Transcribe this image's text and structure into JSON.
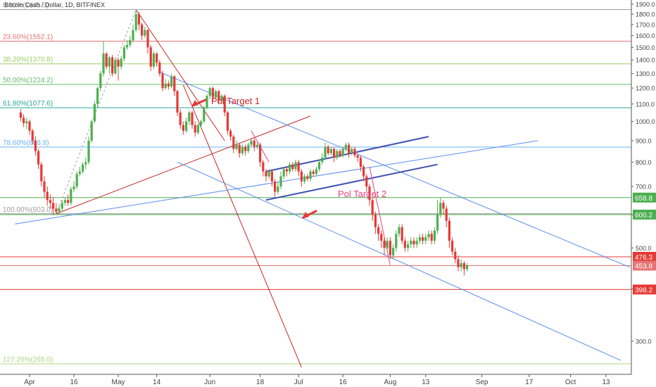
{
  "chart_data": {
    "type": "candlestick",
    "title": "Bitcoin Cash / Dollar, 1D, BITFINEX",
    "x_axis": {
      "ticks": [
        {
          "label": "Apr",
          "day": 0
        },
        {
          "label": "16",
          "day": 15
        },
        {
          "label": "May",
          "day": 30
        },
        {
          "label": "14",
          "day": 43
        },
        {
          "label": "Jun",
          "day": 61
        },
        {
          "label": "18",
          "day": 78
        },
        {
          "label": "Jul",
          "day": 91
        },
        {
          "label": "16",
          "day": 106
        },
        {
          "label": "Aug",
          "day": 122
        },
        {
          "label": "13",
          "day": 134
        },
        {
          "label": "Sep",
          "day": 153
        },
        {
          "label": "17",
          "day": 169
        },
        {
          "label": "Oct",
          "day": 183
        },
        {
          "label": "13",
          "day": 195
        }
      ]
    },
    "y_axis": {
      "scale": "log",
      "range": [
        260,
        1900
      ],
      "ticks": [
        "300.0",
        "400.0",
        "500.0",
        "600.0",
        "700.0",
        "800.0",
        "900.0",
        "1000.0",
        "1100.0",
        "1200.0",
        "1300.0",
        "1400.0",
        "1500.0",
        "1600.0",
        "1700.0",
        "1800.0",
        "1900.0"
      ]
    },
    "fib_levels": [
      {
        "label": "0.00%(1845.3)",
        "value": 1845.3,
        "color": "#9e9e9e"
      },
      {
        "label": "23.60%(1552.1)",
        "value": 1552.1,
        "color": "#e57373"
      },
      {
        "label": "38.20%(1370.8)",
        "value": 1370.8,
        "color": "#9ccc65"
      },
      {
        "label": "50.00%(1224.2)",
        "value": 1224.2,
        "color": "#66bb6a"
      },
      {
        "label": "61.80%(1077.6)",
        "value": 1077.6,
        "color": "#26a69a"
      },
      {
        "label": "78.60%(868.8)",
        "value": 868.8,
        "color": "#64b5f6"
      },
      {
        "label": "100.00%(603.0)",
        "value": 603.0,
        "color": "#9e9e9e"
      },
      {
        "label": "127.20%(265.0)",
        "value": 265.0,
        "color": "#aed581"
      }
    ],
    "horizontal_levels": [
      {
        "label": "658.8",
        "value": 658.8,
        "color": "#4caf50"
      },
      {
        "label": "600.2",
        "value": 600.2,
        "color": "#4caf50"
      },
      {
        "label": "476.3",
        "value": 476.3,
        "color": "#e53935"
      },
      {
        "label": "453.8",
        "value": 453.8,
        "color": "#e57373"
      },
      {
        "label": "398.2",
        "value": 398.2,
        "color": "#e53935"
      }
    ],
    "annotations": [
      {
        "text": "Pol Target 1",
        "color": "#c62828"
      },
      {
        "text": "Pol Target 2",
        "color": "#ec407a"
      }
    ],
    "candles": [
      [
        -3,
        1050,
        1020,
        1070,
        1000
      ],
      [
        -2,
        1020,
        990,
        1040,
        970
      ],
      [
        -1,
        990,
        1000,
        1020,
        960
      ],
      [
        0,
        1000,
        950,
        1010,
        930
      ],
      [
        1,
        950,
        900,
        960,
        880
      ],
      [
        2,
        900,
        850,
        920,
        830
      ],
      [
        3,
        850,
        790,
        860,
        770
      ],
      [
        4,
        790,
        720,
        800,
        700
      ],
      [
        5,
        720,
        680,
        740,
        660
      ],
      [
        6,
        680,
        650,
        700,
        630
      ],
      [
        7,
        650,
        640,
        670,
        620
      ],
      [
        8,
        640,
        620,
        660,
        600
      ],
      [
        9,
        620,
        610,
        640,
        603
      ],
      [
        10,
        610,
        620,
        630,
        600
      ],
      [
        11,
        620,
        640,
        650,
        610
      ],
      [
        12,
        640,
        650,
        660,
        630
      ],
      [
        13,
        650,
        640,
        670,
        630
      ],
      [
        14,
        640,
        690,
        700,
        630
      ],
      [
        15,
        690,
        700,
        720,
        680
      ],
      [
        16,
        700,
        750,
        760,
        690
      ],
      [
        17,
        750,
        760,
        780,
        740
      ],
      [
        18,
        760,
        790,
        800,
        750
      ],
      [
        19,
        790,
        800,
        820,
        770
      ],
      [
        20,
        800,
        900,
        920,
        790
      ],
      [
        21,
        900,
        1000,
        1010,
        890
      ],
      [
        22,
        1000,
        1100,
        1120,
        990
      ],
      [
        23,
        1100,
        1200,
        1210,
        1080
      ],
      [
        24,
        1200,
        1300,
        1320,
        1180
      ],
      [
        25,
        1300,
        1450,
        1550,
        1280
      ],
      [
        26,
        1450,
        1350,
        1460,
        1330
      ],
      [
        27,
        1350,
        1420,
        1430,
        1300
      ],
      [
        28,
        1420,
        1300,
        1440,
        1280
      ],
      [
        29,
        1300,
        1400,
        1420,
        1290
      ],
      [
        30,
        1400,
        1350,
        1420,
        1250
      ],
      [
        31,
        1350,
        1410,
        1430,
        1330
      ],
      [
        32,
        1410,
        1500,
        1520,
        1390
      ],
      [
        33,
        1500,
        1520,
        1560,
        1480
      ],
      [
        34,
        1520,
        1560,
        1600,
        1500
      ],
      [
        35,
        1560,
        1650,
        1700,
        1540
      ],
      [
        36,
        1650,
        1800,
        1845,
        1630
      ],
      [
        37,
        1800,
        1700,
        1820,
        1650
      ],
      [
        38,
        1700,
        1600,
        1720,
        1560
      ],
      [
        39,
        1600,
        1650,
        1680,
        1580
      ],
      [
        40,
        1650,
        1500,
        1660,
        1450
      ],
      [
        41,
        1500,
        1350,
        1520,
        1320
      ],
      [
        42,
        1350,
        1450,
        1470,
        1330
      ],
      [
        43,
        1450,
        1380,
        1460,
        1350
      ],
      [
        44,
        1380,
        1300,
        1400,
        1280
      ],
      [
        45,
        1300,
        1200,
        1320,
        1180
      ],
      [
        46,
        1200,
        1230,
        1260,
        1190
      ],
      [
        47,
        1230,
        1210,
        1250,
        1190
      ],
      [
        48,
        1210,
        1280,
        1300,
        1200
      ],
      [
        49,
        1280,
        1180,
        1290,
        1150
      ],
      [
        50,
        1180,
        1050,
        1190,
        1030
      ],
      [
        51,
        1050,
        980,
        1070,
        960
      ],
      [
        52,
        980,
        950,
        1000,
        930
      ],
      [
        53,
        950,
        1000,
        1020,
        940
      ],
      [
        54,
        1000,
        1050,
        1060,
        980
      ],
      [
        55,
        1050,
        980,
        1060,
        960
      ],
      [
        56,
        980,
        940,
        1000,
        920
      ],
      [
        57,
        940,
        980,
        990,
        930
      ],
      [
        58,
        980,
        1000,
        1010,
        960
      ],
      [
        59,
        1000,
        1080,
        1090,
        990
      ],
      [
        60,
        1080,
        1150,
        1160,
        1070
      ],
      [
        61,
        1150,
        1200,
        1210,
        1130
      ],
      [
        62,
        1200,
        1140,
        1210,
        1120
      ],
      [
        63,
        1140,
        1180,
        1190,
        1130
      ],
      [
        64,
        1180,
        1120,
        1190,
        1100
      ],
      [
        65,
        1120,
        1150,
        1160,
        1100
      ],
      [
        66,
        1150,
        1050,
        1160,
        1030
      ],
      [
        67,
        1050,
        950,
        1060,
        930
      ],
      [
        68,
        950,
        920,
        960,
        900
      ],
      [
        69,
        920,
        860,
        930,
        840
      ],
      [
        70,
        860,
        880,
        900,
        850
      ],
      [
        71,
        880,
        840,
        890,
        820
      ],
      [
        72,
        840,
        870,
        880,
        830
      ],
      [
        73,
        870,
        850,
        880,
        830
      ],
      [
        74,
        850,
        880,
        890,
        840
      ],
      [
        75,
        880,
        900,
        910,
        870
      ],
      [
        76,
        900,
        870,
        910,
        850
      ],
      [
        77,
        870,
        880,
        890,
        860
      ],
      [
        78,
        880,
        800,
        890,
        780
      ],
      [
        79,
        800,
        760,
        810,
        740
      ],
      [
        80,
        760,
        740,
        770,
        720
      ],
      [
        81,
        740,
        760,
        770,
        730
      ],
      [
        82,
        760,
        720,
        770,
        700
      ],
      [
        83,
        720,
        680,
        730,
        660
      ],
      [
        84,
        680,
        700,
        720,
        670
      ],
      [
        85,
        700,
        740,
        760,
        690
      ],
      [
        86,
        740,
        770,
        780,
        730
      ],
      [
        87,
        770,
        760,
        780,
        740
      ],
      [
        88,
        760,
        790,
        800,
        750
      ],
      [
        89,
        790,
        770,
        800,
        760
      ],
      [
        90,
        770,
        800,
        810,
        760
      ],
      [
        91,
        800,
        760,
        810,
        740
      ],
      [
        92,
        760,
        720,
        770,
        700
      ],
      [
        93,
        720,
        740,
        750,
        710
      ],
      [
        94,
        740,
        730,
        750,
        720
      ],
      [
        95,
        730,
        760,
        770,
        720
      ],
      [
        96,
        760,
        750,
        770,
        740
      ],
      [
        97,
        750,
        770,
        780,
        740
      ],
      [
        98,
        770,
        800,
        810,
        760
      ],
      [
        99,
        800,
        820,
        840,
        790
      ],
      [
        100,
        820,
        870,
        890,
        810
      ],
      [
        101,
        870,
        840,
        880,
        830
      ],
      [
        102,
        840,
        860,
        870,
        830
      ],
      [
        103,
        860,
        820,
        870,
        800
      ],
      [
        104,
        820,
        850,
        860,
        810
      ],
      [
        105,
        850,
        830,
        860,
        820
      ],
      [
        106,
        830,
        860,
        870,
        820
      ],
      [
        107,
        860,
        880,
        890,
        850
      ],
      [
        108,
        880,
        840,
        890,
        820
      ],
      [
        109,
        840,
        860,
        870,
        830
      ],
      [
        110,
        860,
        830,
        870,
        820
      ],
      [
        111,
        830,
        820,
        840,
        800
      ],
      [
        112,
        820,
        780,
        830,
        760
      ],
      [
        113,
        780,
        740,
        790,
        720
      ],
      [
        114,
        740,
        700,
        750,
        680
      ],
      [
        115,
        700,
        650,
        710,
        630
      ],
      [
        116,
        650,
        600,
        660,
        580
      ],
      [
        117,
        600,
        560,
        610,
        540
      ],
      [
        118,
        560,
        540,
        570,
        520
      ],
      [
        119,
        540,
        520,
        550,
        500
      ],
      [
        120,
        520,
        500,
        530,
        480
      ],
      [
        121,
        500,
        520,
        530,
        490
      ],
      [
        122,
        520,
        480,
        530,
        470
      ],
      [
        123,
        480,
        500,
        510,
        470
      ],
      [
        124,
        500,
        540,
        550,
        490
      ],
      [
        125,
        540,
        560,
        570,
        530
      ],
      [
        126,
        560,
        520,
        570,
        510
      ],
      [
        127,
        520,
        500,
        530,
        490
      ],
      [
        128,
        500,
        510,
        520,
        490
      ],
      [
        129,
        510,
        520,
        530,
        500
      ],
      [
        130,
        520,
        510,
        530,
        500
      ],
      [
        131,
        510,
        520,
        530,
        500
      ],
      [
        132,
        520,
        530,
        540,
        510
      ],
      [
        133,
        530,
        520,
        540,
        510
      ],
      [
        134,
        520,
        530,
        540,
        510
      ],
      [
        135,
        530,
        540,
        550,
        520
      ],
      [
        136,
        540,
        520,
        550,
        510
      ],
      [
        137,
        520,
        550,
        560,
        510
      ],
      [
        138,
        550,
        600,
        650,
        540
      ],
      [
        139,
        600,
        640,
        660,
        590
      ],
      [
        140,
        640,
        620,
        650,
        600
      ],
      [
        141,
        620,
        580,
        630,
        560
      ],
      [
        142,
        580,
        520,
        590,
        500
      ],
      [
        143,
        520,
        490,
        530,
        480
      ],
      [
        144,
        490,
        470,
        500,
        460
      ],
      [
        145,
        470,
        450,
        480,
        440
      ],
      [
        146,
        450,
        460,
        470,
        440
      ],
      [
        147,
        460,
        445,
        465,
        430
      ],
      [
        148,
        445,
        455,
        460,
        440
      ]
    ]
  }
}
